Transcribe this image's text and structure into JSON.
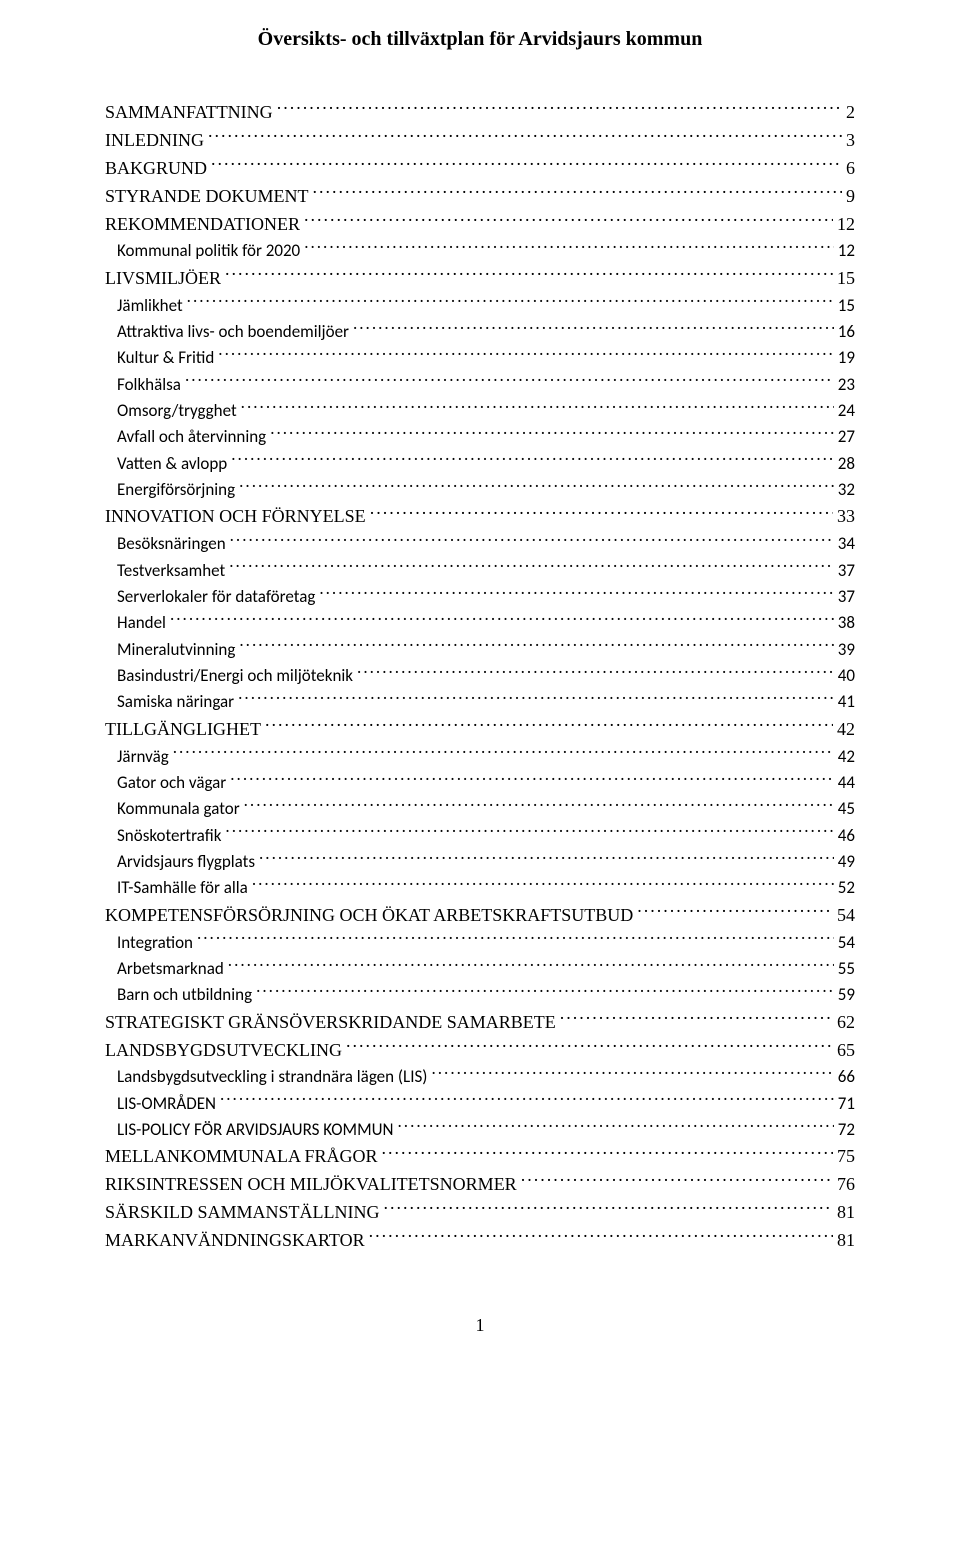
{
  "title": "Översikts- och tillväxtplan för Arvidsjaurs kommun",
  "page_number": "1",
  "toc": [
    {
      "level": 1,
      "label": "SAMMANFATTNING",
      "page": "2"
    },
    {
      "level": 1,
      "label": "INLEDNING",
      "page": "3"
    },
    {
      "level": 1,
      "label": "BAKGRUND",
      "page": "6"
    },
    {
      "level": 1,
      "label": "STYRANDE DOKUMENT",
      "page": "9"
    },
    {
      "level": 1,
      "label": "REKOMMENDATIONER",
      "page": "12"
    },
    {
      "level": 2,
      "label": "Kommunal politik för 2020",
      "page": "12"
    },
    {
      "level": 1,
      "label": "LIVSMILJÖER",
      "page": "15"
    },
    {
      "level": 2,
      "label": "Jämlikhet",
      "page": "15"
    },
    {
      "level": 2,
      "label": "Attraktiva livs- och boendemiljöer",
      "page": "16"
    },
    {
      "level": 2,
      "label": "Kultur & Fritid",
      "page": "19"
    },
    {
      "level": 2,
      "label": "Folkhälsa",
      "page": "23"
    },
    {
      "level": 2,
      "label": "Omsorg/trygghet",
      "page": "24"
    },
    {
      "level": 2,
      "label": "Avfall och återvinning",
      "page": "27"
    },
    {
      "level": 2,
      "label": "Vatten & avlopp",
      "page": "28"
    },
    {
      "level": 2,
      "label": "Energiförsörjning",
      "page": "32"
    },
    {
      "level": 1,
      "label": "INNOVATION OCH FÖRNYELSE",
      "page": "33"
    },
    {
      "level": 2,
      "label": "Besöksnäringen",
      "page": "34"
    },
    {
      "level": 2,
      "label": "Testverksamhet",
      "page": "37"
    },
    {
      "level": 2,
      "label": "Serverlokaler för dataföretag",
      "page": "37"
    },
    {
      "level": 2,
      "label": "Handel",
      "page": "38"
    },
    {
      "level": 2,
      "label": "Mineralutvinning",
      "page": "39"
    },
    {
      "level": 2,
      "label": "Basindustri/Energi och miljöteknik",
      "page": "40"
    },
    {
      "level": 2,
      "label": "Samiska näringar",
      "page": "41"
    },
    {
      "level": 1,
      "label": "TILLGÄNGLIGHET",
      "page": "42"
    },
    {
      "level": 2,
      "label": "Järnväg",
      "page": "42"
    },
    {
      "level": 2,
      "label": "Gator och vägar",
      "page": "44"
    },
    {
      "level": 2,
      "label": "Kommunala gator",
      "page": "45"
    },
    {
      "level": 2,
      "label": "Snöskotertrafik",
      "page": "46"
    },
    {
      "level": 2,
      "label": "Arvidsjaurs flygplats",
      "page": "49"
    },
    {
      "level": 2,
      "label": "IT-Samhälle för alla",
      "page": "52"
    },
    {
      "level": 1,
      "label": "KOMPETENSFÖRSÖRJNING OCH ÖKAT ARBETSKRAFTSUTBUD",
      "page": "54"
    },
    {
      "level": 2,
      "label": "Integration",
      "page": "54"
    },
    {
      "level": 2,
      "label": "Arbetsmarknad",
      "page": "55"
    },
    {
      "level": 2,
      "label": "Barn och utbildning",
      "page": "59"
    },
    {
      "level": 1,
      "label": "STRATEGISKT GRÄNSÖVERSKRIDANDE SAMARBETE",
      "page": "62"
    },
    {
      "level": 1,
      "label": "LANDSBYGDSUTVECKLING",
      "page": "65"
    },
    {
      "level": 2,
      "label": "Landsbygdsutveckling i strandnära lägen (LIS)",
      "page": "66"
    },
    {
      "level": 2,
      "label": "LIS-OMRÅDEN",
      "page": "71"
    },
    {
      "level": 2,
      "label": "LIS-POLICY FÖR ARVIDSJAURS KOMMUN",
      "page": "72"
    },
    {
      "level": 1,
      "label": "MELLANKOMMUNALA FRÅGOR",
      "page": "75"
    },
    {
      "level": 1,
      "label": "RIKSINTRESSEN OCH MILJÖKVALITETSNORMER",
      "page": "76"
    },
    {
      "level": 1,
      "label": "SÄRSKILD SAMMANSTÄLLNING",
      "page": "81"
    },
    {
      "level": 1,
      "label": "MARKANVÄNDNINGSKARTOR",
      "page": "81"
    }
  ]
}
